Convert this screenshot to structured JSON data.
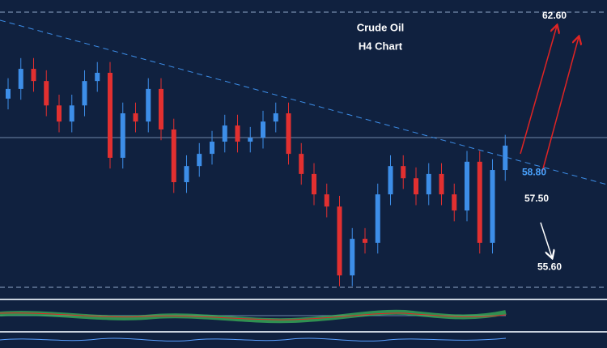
{
  "chart_data": {
    "type": "candlestick",
    "title": "Crude Oil",
    "subtitle": "H4 Chart",
    "ylim": [
      54.7,
      63.05
    ],
    "series": [
      {
        "up_color": "#3d8ee8",
        "down_color": "#e23030",
        "open": [
          60.3,
          60.57,
          61.13,
          60.79,
          60.11,
          59.66,
          60.11,
          60.79,
          61.02,
          58.65,
          59.89,
          59.66,
          60.57,
          59.44,
          57.97,
          58.42,
          58.76,
          59.1,
          59.55,
          59.1,
          59.21,
          59.66,
          59.89,
          58.76,
          58.2,
          57.63,
          57.29,
          55.37,
          56.39,
          56.28,
          57.63,
          58.42,
          58.08,
          57.63,
          58.2,
          57.63,
          57.18,
          58.54,
          56.28,
          58.31
        ],
        "high": [
          60.87,
          61.43,
          61.43,
          61.09,
          60.41,
          60.41,
          61.09,
          61.32,
          61.32,
          60.19,
          60.19,
          60.87,
          60.87,
          59.74,
          58.72,
          59.06,
          59.4,
          59.85,
          59.85,
          59.51,
          59.96,
          60.19,
          60.19,
          59.06,
          58.5,
          57.93,
          57.59,
          56.69,
          56.69,
          57.93,
          58.72,
          58.72,
          58.38,
          58.5,
          58.5,
          57.93,
          58.84,
          58.84,
          58.61,
          59.29
        ],
        "low": [
          60.0,
          60.27,
          60.49,
          59.81,
          59.36,
          59.36,
          59.81,
          60.49,
          58.35,
          58.35,
          59.36,
          59.36,
          59.14,
          57.67,
          57.67,
          58.12,
          58.46,
          58.8,
          58.8,
          58.8,
          58.91,
          59.36,
          58.46,
          57.9,
          57.33,
          56.99,
          55.07,
          55.07,
          55.98,
          55.98,
          57.33,
          57.78,
          57.33,
          57.33,
          57.33,
          56.88,
          56.88,
          55.98,
          55.98,
          58.01
        ],
        "close": [
          60.57,
          61.13,
          60.79,
          60.11,
          59.66,
          60.11,
          60.79,
          61.02,
          58.65,
          59.89,
          59.66,
          60.57,
          59.44,
          57.97,
          58.42,
          58.76,
          59.1,
          59.55,
          59.1,
          59.21,
          59.66,
          59.89,
          58.76,
          58.2,
          57.63,
          57.29,
          55.37,
          56.39,
          56.28,
          57.63,
          58.42,
          58.08,
          57.63,
          58.2,
          57.63,
          57.18,
          58.54,
          56.28,
          58.31,
          58.99
        ]
      }
    ],
    "levels": [
      {
        "value": 62.6,
        "label": "62.60",
        "color": "#ffffff"
      },
      {
        "value": 58.8,
        "label": "58.80",
        "color": "#4aa3ff"
      },
      {
        "value": 57.5,
        "label": "57.50",
        "color": "#ffffff"
      },
      {
        "value": 55.6,
        "label": "55.60",
        "color": "#ffffff"
      }
    ]
  }
}
